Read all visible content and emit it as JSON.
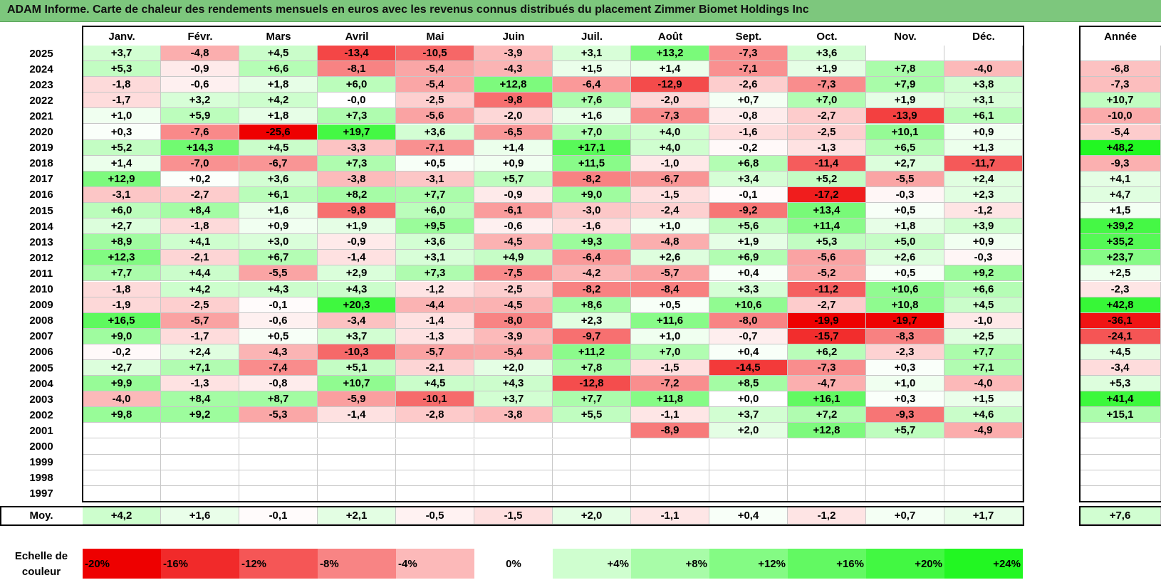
{
  "title": "ADAM Informe. Carte de chaleur des rendements mensuels en euros avec les revenus connus distribués du placement Zimmer Biomet Holdings Inc",
  "colors": {
    "title_bg": "#7dc77d",
    "positive_max": "#22ee22",
    "negative_max": "#ee0000",
    "neutral": "#ffffff"
  },
  "chart_data": {
    "type": "heatmap",
    "columns": [
      "Janv.",
      "Févr.",
      "Mars",
      "Avril",
      "Mai",
      "Juin",
      "Juil.",
      "Août",
      "Sept.",
      "Oct.",
      "Nov.",
      "Déc."
    ],
    "year_header": "Année",
    "rows": [
      {
        "year": "2025",
        "values": [
          "+3,7",
          "-4,8",
          "+4,5",
          "-13,4",
          "-10,5",
          "-3,9",
          "+3,1",
          "+13,2",
          "-7,3",
          "+3,6",
          "",
          ""
        ],
        "annual": ""
      },
      {
        "year": "2024",
        "values": [
          "+5,3",
          "-0,9",
          "+6,6",
          "-8,1",
          "-5,4",
          "-4,3",
          "+1,5",
          "+1,4",
          "-7,1",
          "+1,9",
          "+7,8",
          "-4,0"
        ],
        "annual": "-6,8"
      },
      {
        "year": "2023",
        "values": [
          "-1,8",
          "-0,6",
          "+1,8",
          "+6,0",
          "-5,4",
          "+12,8",
          "-6,4",
          "-12,9",
          "-2,6",
          "-7,3",
          "+7,9",
          "+3,8"
        ],
        "annual": "-7,3"
      },
      {
        "year": "2022",
        "values": [
          "-1,7",
          "+3,2",
          "+4,2",
          "-0,0",
          "-2,5",
          "-9,8",
          "+7,6",
          "-2,0",
          "+0,7",
          "+7,0",
          "+1,9",
          "+3,1"
        ],
        "annual": "+10,7"
      },
      {
        "year": "2021",
        "values": [
          "+1,0",
          "+5,9",
          "+1,8",
          "+7,3",
          "-5,6",
          "-2,0",
          "+1,6",
          "-7,3",
          "-0,8",
          "-2,7",
          "-13,9",
          "+6,1"
        ],
        "annual": "-10,0"
      },
      {
        "year": "2020",
        "values": [
          "+0,3",
          "-7,6",
          "-25,6",
          "+19,7",
          "+3,6",
          "-6,5",
          "+7,0",
          "+4,0",
          "-1,6",
          "-2,5",
          "+10,1",
          "+0,9"
        ],
        "annual": "-5,4"
      },
      {
        "year": "2019",
        "values": [
          "+5,2",
          "+14,3",
          "+4,5",
          "-3,3",
          "-7,1",
          "+1,4",
          "+17,1",
          "+4,0",
          "-0,2",
          "-1,3",
          "+6,5",
          "+1,3"
        ],
        "annual": "+48,2"
      },
      {
        "year": "2018",
        "values": [
          "+1,4",
          "-7,0",
          "-6,7",
          "+7,3",
          "+0,5",
          "+0,9",
          "+11,5",
          "-1,0",
          "+6,8",
          "-11,4",
          "+2,7",
          "-11,7"
        ],
        "annual": "-9,3"
      },
      {
        "year": "2017",
        "values": [
          "+12,9",
          "+0,2",
          "+3,6",
          "-3,8",
          "-3,1",
          "+5,7",
          "-8,2",
          "-6,7",
          "+3,4",
          "+5,2",
          "-5,5",
          "+2,4"
        ],
        "annual": "+4,1"
      },
      {
        "year": "2016",
        "values": [
          "-3,1",
          "-2,7",
          "+6,1",
          "+8,2",
          "+7,7",
          "-0,9",
          "+9,0",
          "-1,5",
          "-0,1",
          "-17,2",
          "-0,3",
          "+2,3"
        ],
        "annual": "+4,7"
      },
      {
        "year": "2015",
        "values": [
          "+6,0",
          "+8,4",
          "+1,6",
          "-9,8",
          "+6,0",
          "-6,1",
          "-3,0",
          "-2,4",
          "-9,2",
          "+13,4",
          "+0,5",
          "-1,2"
        ],
        "annual": "+1,5"
      },
      {
        "year": "2014",
        "values": [
          "+2,7",
          "-1,8",
          "+0,9",
          "+1,9",
          "+9,5",
          "-0,6",
          "-1,6",
          "+1,0",
          "+5,6",
          "+11,4",
          "+1,8",
          "+3,9"
        ],
        "annual": "+39,2"
      },
      {
        "year": "2013",
        "values": [
          "+8,9",
          "+4,1",
          "+3,0",
          "-0,9",
          "+3,6",
          "-4,5",
          "+9,3",
          "-4,8",
          "+1,9",
          "+5,3",
          "+5,0",
          "+0,9"
        ],
        "annual": "+35,2"
      },
      {
        "year": "2012",
        "values": [
          "+12,3",
          "-2,1",
          "+6,7",
          "-1,4",
          "+3,1",
          "+4,9",
          "-6,4",
          "+2,6",
          "+6,9",
          "-5,6",
          "+2,6",
          "-0,3"
        ],
        "annual": "+23,7"
      },
      {
        "year": "2011",
        "values": [
          "+7,7",
          "+4,4",
          "-5,5",
          "+2,9",
          "+7,3",
          "-7,5",
          "-4,2",
          "-5,7",
          "+0,4",
          "-5,2",
          "+0,5",
          "+9,2"
        ],
        "annual": "+2,5"
      },
      {
        "year": "2010",
        "values": [
          "-1,8",
          "+4,2",
          "+4,3",
          "+4,3",
          "-1,2",
          "-2,5",
          "-8,2",
          "-8,4",
          "+3,3",
          "-11,2",
          "+10,6",
          "+6,6"
        ],
        "annual": "-2,3"
      },
      {
        "year": "2009",
        "values": [
          "-1,9",
          "-2,5",
          "-0,1",
          "+20,3",
          "-4,4",
          "-4,5",
          "+8,6",
          "+0,5",
          "+10,6",
          "-2,7",
          "+10,8",
          "+4,5"
        ],
        "annual": "+42,8"
      },
      {
        "year": "2008",
        "values": [
          "+16,5",
          "-5,7",
          "-0,6",
          "-3,4",
          "-1,4",
          "-8,0",
          "+2,3",
          "+11,6",
          "-8,0",
          "-19,9",
          "-19,7",
          "-1,0"
        ],
        "annual": "-36,1"
      },
      {
        "year": "2007",
        "values": [
          "+9,0",
          "-1,7",
          "+0,5",
          "+3,7",
          "-1,3",
          "-3,9",
          "-9,7",
          "+1,0",
          "-0,7",
          "-15,7",
          "-8,3",
          "+2,5"
        ],
        "annual": "-24,1"
      },
      {
        "year": "2006",
        "values": [
          "-0,2",
          "+2,4",
          "-4,3",
          "-10,3",
          "-5,7",
          "-5,4",
          "+11,2",
          "+7,0",
          "+0,4",
          "+6,2",
          "-2,3",
          "+7,7"
        ],
        "annual": "+4,5"
      },
      {
        "year": "2005",
        "values": [
          "+2,7",
          "+7,1",
          "-7,4",
          "+5,1",
          "-2,1",
          "+2,0",
          "+7,8",
          "-1,5",
          "-14,5",
          "-7,3",
          "+0,3",
          "+7,1"
        ],
        "annual": "-3,4"
      },
      {
        "year": "2004",
        "values": [
          "+9,9",
          "-1,3",
          "-0,8",
          "+10,7",
          "+4,5",
          "+4,3",
          "-12,8",
          "-7,2",
          "+8,5",
          "-4,7",
          "+1,0",
          "-4,0"
        ],
        "annual": "+5,3"
      },
      {
        "year": "2003",
        "values": [
          "-4,0",
          "+8,4",
          "+8,7",
          "-5,9",
          "-10,1",
          "+3,7",
          "+7,7",
          "+11,8",
          "+0,0",
          "+16,1",
          "+0,3",
          "+1,5"
        ],
        "annual": "+41,4"
      },
      {
        "year": "2002",
        "values": [
          "+9,8",
          "+9,2",
          "-5,3",
          "-1,4",
          "-2,8",
          "-3,8",
          "+5,5",
          "-1,1",
          "+3,7",
          "+7,2",
          "-9,3",
          "+4,6"
        ],
        "annual": "+15,1"
      },
      {
        "year": "2001",
        "values": [
          "",
          "",
          "",
          "",
          "",
          "",
          "",
          "-8,9",
          "+2,0",
          "+12,8",
          "+5,7",
          "-4,9"
        ],
        "annual": ""
      },
      {
        "year": "2000",
        "values": [
          "",
          "",
          "",
          "",
          "",
          "",
          "",
          "",
          "",
          "",
          "",
          ""
        ],
        "annual": ""
      },
      {
        "year": "1999",
        "values": [
          "",
          "",
          "",
          "",
          "",
          "",
          "",
          "",
          "",
          "",
          "",
          ""
        ],
        "annual": ""
      },
      {
        "year": "1998",
        "values": [
          "",
          "",
          "",
          "",
          "",
          "",
          "",
          "",
          "",
          "",
          "",
          ""
        ],
        "annual": ""
      },
      {
        "year": "1997",
        "values": [
          "",
          "",
          "",
          "",
          "",
          "",
          "",
          "",
          "",
          "",
          "",
          ""
        ],
        "annual": ""
      }
    ],
    "average": {
      "label": "Moy.",
      "values": [
        "+4,2",
        "+1,6",
        "-0,1",
        "+2,1",
        "-0,5",
        "-1,5",
        "+2,0",
        "-1,1",
        "+0,4",
        "-1,2",
        "+0,7",
        "+1,7"
      ],
      "annual": "+7,6"
    },
    "scale": {
      "label": "Echelle de couleur",
      "items": [
        "-20%",
        "-16%",
        "-12%",
        "-8%",
        "-4%",
        "0%",
        "+4%",
        "+8%",
        "+12%",
        "+16%",
        "+20%",
        "+24%"
      ]
    }
  }
}
